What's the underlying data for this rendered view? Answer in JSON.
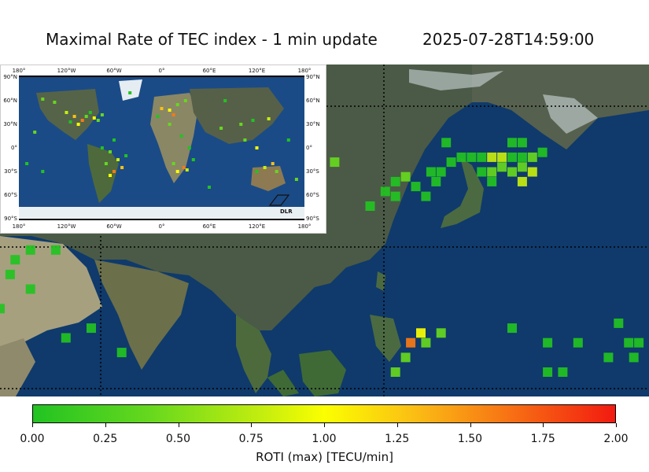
{
  "header": {
    "title": "Maximal Rate of TEC index - 1 min update",
    "timestamp": "2025-07-28T14:59:00"
  },
  "colorbar": {
    "label": "ROTI (max) [TECU/min]",
    "ticks": [
      "0.00",
      "0.25",
      "0.50",
      "0.75",
      "1.00",
      "1.25",
      "1.50",
      "1.75",
      "2.00"
    ],
    "range": [
      0,
      2
    ],
    "colors": [
      "#22c322",
      "#66d81e",
      "#c7ee0e",
      "#fbff00",
      "#fbc014",
      "#f87a14",
      "#f21a10"
    ]
  },
  "inset": {
    "lon_ticks_top": [
      "180°",
      "120°W",
      "60°W",
      "0°",
      "60°E",
      "120°E",
      "180°"
    ],
    "lon_ticks_bottom": [
      "180°",
      "120°W",
      "60°W",
      "0°",
      "60°E",
      "120°E",
      "180°"
    ],
    "lat_ticks": [
      "90°N",
      "60°N",
      "30°N",
      "0°",
      "30°S",
      "60°S",
      "90°S"
    ],
    "logo_text": "DLR"
  },
  "map_colors": {
    "ocean": "#0f3a6b",
    "land": "#4b5a46",
    "desert": "#a7a07f",
    "ice": "#d9e4ea",
    "grid": "#000000"
  },
  "main_map": {
    "lon_range": [
      42,
      170
    ],
    "lat_range": [
      -10,
      58
    ],
    "cells": [
      {
        "lon": 130,
        "lat": 42,
        "roti": 0.1
      },
      {
        "lon": 133,
        "lat": 39,
        "roti": 0.15
      },
      {
        "lon": 135,
        "lat": 39,
        "roti": 0.2
      },
      {
        "lon": 137,
        "lat": 39,
        "roti": 0.25
      },
      {
        "lon": 139,
        "lat": 39,
        "roti": 0.95
      },
      {
        "lon": 141,
        "lat": 39,
        "roti": 0.9
      },
      {
        "lon": 143,
        "lat": 39,
        "roti": 0.2
      },
      {
        "lon": 145,
        "lat": 39,
        "roti": 0.3
      },
      {
        "lon": 147,
        "lat": 39,
        "roti": 0.7
      },
      {
        "lon": 149,
        "lat": 40,
        "roti": 0.2
      },
      {
        "lon": 137,
        "lat": 36,
        "roti": 0.3
      },
      {
        "lon": 139,
        "lat": 36,
        "roti": 0.6
      },
      {
        "lon": 141,
        "lat": 37,
        "roti": 0.5
      },
      {
        "lon": 143,
        "lat": 36,
        "roti": 0.7
      },
      {
        "lon": 145,
        "lat": 37,
        "roti": 0.4
      },
      {
        "lon": 147,
        "lat": 36,
        "roti": 0.9
      },
      {
        "lon": 145,
        "lat": 34,
        "roti": 0.95
      },
      {
        "lon": 143,
        "lat": 42,
        "roti": 0.2
      },
      {
        "lon": 145,
        "lat": 42,
        "roti": 0.15
      },
      {
        "lon": 139,
        "lat": 34,
        "roti": 0.25
      },
      {
        "lon": 127,
        "lat": 36,
        "roti": 0.2
      },
      {
        "lon": 129,
        "lat": 36,
        "roti": 0.3
      },
      {
        "lon": 131,
        "lat": 38,
        "roti": 0.25
      },
      {
        "lon": 128,
        "lat": 34,
        "roti": 0.15
      },
      {
        "lon": 120,
        "lat": 34,
        "roti": 0.35
      },
      {
        "lon": 122,
        "lat": 35,
        "roti": 0.4
      },
      {
        "lon": 124,
        "lat": 33,
        "roti": 0.35
      },
      {
        "lon": 118,
        "lat": 32,
        "roti": 0.3
      },
      {
        "lon": 120,
        "lat": 31,
        "roti": 0.25
      },
      {
        "lon": 126,
        "lat": 31,
        "roti": 0.2
      },
      {
        "lon": 115,
        "lat": 29,
        "roti": 0.3
      },
      {
        "lon": 108,
        "lat": 38,
        "roti": 0.45
      },
      {
        "lon": 125,
        "lat": 3,
        "roti": 1.2
      },
      {
        "lon": 123,
        "lat": 1,
        "roti": 1.75
      },
      {
        "lon": 122,
        "lat": -2,
        "roti": 0.7
      },
      {
        "lon": 120,
        "lat": -5,
        "roti": 0.75
      },
      {
        "lon": 126,
        "lat": 1,
        "roti": 0.4
      },
      {
        "lon": 129,
        "lat": 3,
        "roti": 0.5
      },
      {
        "lon": 143,
        "lat": 4,
        "roti": 0.2
      },
      {
        "lon": 150,
        "lat": 1,
        "roti": 0.15
      },
      {
        "lon": 156,
        "lat": 1,
        "roti": 0.2
      },
      {
        "lon": 150,
        "lat": -5,
        "roti": 0.15
      },
      {
        "lon": 153,
        "lat": -5,
        "roti": 0.2
      },
      {
        "lon": 164,
        "lat": 5,
        "roti": 0.25
      },
      {
        "lon": 166,
        "lat": 1,
        "roti": 0.2
      },
      {
        "lon": 167,
        "lat": -2,
        "roti": 0.15
      },
      {
        "lon": 168,
        "lat": 1,
        "roti": 0.3
      },
      {
        "lon": 162,
        "lat": -2,
        "roti": 0.2
      },
      {
        "lon": 45,
        "lat": 18,
        "roti": 0.15
      },
      {
        "lon": 48,
        "lat": 20,
        "roti": 0.2
      },
      {
        "lon": 53,
        "lat": 20,
        "roti": 0.25
      },
      {
        "lon": 44,
        "lat": 15,
        "roti": 0.2
      },
      {
        "lon": 48,
        "lat": 12,
        "roti": 0.25
      },
      {
        "lon": 42,
        "lat": 8,
        "roti": 0.3
      },
      {
        "lon": 55,
        "lat": 2,
        "roti": 0.25
      },
      {
        "lon": 60,
        "lat": 4,
        "roti": 0.2
      },
      {
        "lon": 66,
        "lat": -1,
        "roti": 0.3
      }
    ]
  },
  "inset_map": {
    "cells": [
      {
        "lon": -120,
        "lat": 45,
        "roti": 0.8
      },
      {
        "lon": -110,
        "lat": 40,
        "roti": 1.5
      },
      {
        "lon": -100,
        "lat": 35,
        "roti": 1.8
      },
      {
        "lon": -95,
        "lat": 40,
        "roti": 0.6
      },
      {
        "lon": -85,
        "lat": 38,
        "roti": 1.2
      },
      {
        "lon": -80,
        "lat": 35,
        "roti": 0.4
      },
      {
        "lon": -105,
        "lat": 30,
        "roti": 1.0
      },
      {
        "lon": -115,
        "lat": 33,
        "roti": 0.3
      },
      {
        "lon": -90,
        "lat": 45,
        "roti": 0.2
      },
      {
        "lon": -75,
        "lat": 42,
        "roti": 0.5
      },
      {
        "lon": -135,
        "lat": 58,
        "roti": 0.7
      },
      {
        "lon": -150,
        "lat": 62,
        "roti": 0.4
      },
      {
        "lon": -60,
        "lat": 10,
        "roti": 0.3
      },
      {
        "lon": -65,
        "lat": -5,
        "roti": 0.6
      },
      {
        "lon": -55,
        "lat": -15,
        "roti": 0.9
      },
      {
        "lon": -50,
        "lat": -25,
        "roti": 1.3
      },
      {
        "lon": -60,
        "lat": -30,
        "roti": 1.9
      },
      {
        "lon": -65,
        "lat": -35,
        "roti": 1.0
      },
      {
        "lon": -70,
        "lat": -20,
        "roti": 0.4
      },
      {
        "lon": -45,
        "lat": -10,
        "roti": 0.3
      },
      {
        "lon": -75,
        "lat": 0,
        "roti": 0.2
      },
      {
        "lon": 0,
        "lat": 50,
        "roti": 1.4
      },
      {
        "lon": 10,
        "lat": 48,
        "roti": 1.0
      },
      {
        "lon": 20,
        "lat": 55,
        "roti": 0.6
      },
      {
        "lon": -5,
        "lat": 40,
        "roti": 0.3
      },
      {
        "lon": 15,
        "lat": 42,
        "roti": 1.7
      },
      {
        "lon": 30,
        "lat": 60,
        "roti": 0.4
      },
      {
        "lon": 10,
        "lat": 30,
        "roti": 0.5
      },
      {
        "lon": 25,
        "lat": 15,
        "roti": 0.2
      },
      {
        "lon": 35,
        "lat": 0,
        "roti": 0.3
      },
      {
        "lon": 28,
        "lat": -25,
        "roti": 1.6
      },
      {
        "lon": 20,
        "lat": -30,
        "roti": 1.1
      },
      {
        "lon": 32,
        "lat": -28,
        "roti": 0.8
      },
      {
        "lon": 15,
        "lat": -20,
        "roti": 0.4
      },
      {
        "lon": 40,
        "lat": -15,
        "roti": 0.3
      },
      {
        "lon": 75,
        "lat": 25,
        "roti": 0.4
      },
      {
        "lon": 100,
        "lat": 30,
        "roti": 0.5
      },
      {
        "lon": 115,
        "lat": 35,
        "roti": 0.3
      },
      {
        "lon": 135,
        "lat": 37,
        "roti": 0.9
      },
      {
        "lon": 105,
        "lat": 10,
        "roti": 0.6
      },
      {
        "lon": 120,
        "lat": 0,
        "roti": 1.2
      },
      {
        "lon": 130,
        "lat": -25,
        "roti": 0.8
      },
      {
        "lon": 145,
        "lat": -30,
        "roti": 0.5
      },
      {
        "lon": 140,
        "lat": -20,
        "roti": 1.4
      },
      {
        "lon": 120,
        "lat": -30,
        "roti": 0.3
      },
      {
        "lon": 170,
        "lat": -40,
        "roti": 0.4
      },
      {
        "lon": -170,
        "lat": -20,
        "roti": 0.3
      },
      {
        "lon": -150,
        "lat": -30,
        "roti": 0.2
      },
      {
        "lon": 160,
        "lat": 10,
        "roti": 0.3
      },
      {
        "lon": -160,
        "lat": 20,
        "roti": 0.4
      },
      {
        "lon": 60,
        "lat": -50,
        "roti": 0.2
      },
      {
        "lon": -40,
        "lat": 70,
        "roti": 0.3
      },
      {
        "lon": 80,
        "lat": 60,
        "roti": 0.25
      }
    ]
  }
}
